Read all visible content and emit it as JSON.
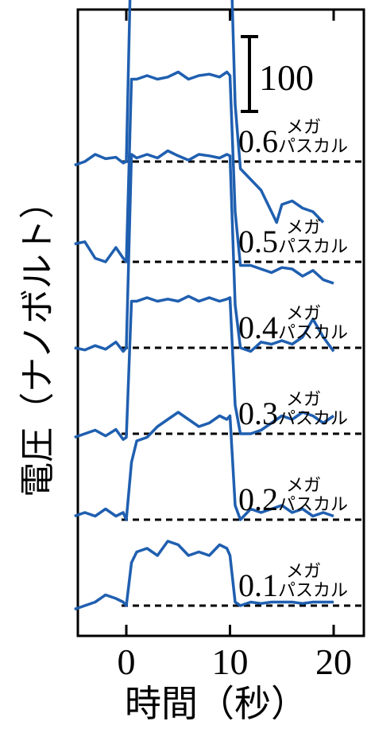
{
  "chart_data": {
    "type": "line",
    "xlabel": "時間（秒）",
    "ylabel": "電圧（ナノボルト）",
    "x_ticks": [
      "0",
      "10",
      "20"
    ],
    "xlim": [
      -5,
      21
    ],
    "scale_bar_label": "100",
    "series_color": "#1f5fb0",
    "series": [
      {
        "label_value": "0.6",
        "label_top": "メガ",
        "label_bottom": "パスカル",
        "offset": 500,
        "x": [
          -5,
          -4,
          -3,
          -2,
          -1,
          -0.3,
          0,
          0.5,
          1,
          2,
          3,
          4,
          5,
          6,
          7,
          8,
          9,
          9.7,
          10,
          10.5,
          11,
          12,
          13,
          14,
          14.5,
          15,
          16,
          17,
          18,
          19
        ],
        "y": [
          -5,
          0,
          10,
          4,
          6,
          -2,
          0,
          320,
          320,
          335,
          325,
          330,
          335,
          325,
          330,
          338,
          330,
          335,
          330,
          80,
          -10,
          -25,
          -40,
          -70,
          -85,
          -60,
          -55,
          -65,
          -70,
          -85
        ]
      },
      {
        "label_value": "0.5",
        "label_top": "メガ",
        "label_bottom": "パスカル",
        "offset": 360,
        "x": [
          -5,
          -4,
          -3,
          -2,
          -1,
          -0.3,
          0,
          0.5,
          1,
          2,
          3,
          4,
          5,
          6,
          7,
          8,
          9,
          9.7,
          10,
          10.5,
          11,
          12,
          13,
          14,
          15,
          16,
          17,
          18,
          19,
          20
        ],
        "y": [
          25,
          28,
          5,
          0,
          20,
          5,
          0,
          255,
          255,
          260,
          255,
          258,
          265,
          255,
          260,
          262,
          258,
          265,
          260,
          70,
          -5,
          -5,
          -10,
          -15,
          -8,
          -10,
          -20,
          -12,
          -25,
          -30
        ]
      },
      {
        "label_value": "0.4",
        "label_top": "メガ",
        "label_bottom": "パスカル",
        "offset": 240,
        "x": [
          -5,
          -4,
          -3,
          -2,
          -1,
          -0.3,
          0,
          0.5,
          1,
          2,
          3,
          4,
          5,
          6,
          7,
          8,
          9,
          9.7,
          10,
          10.5,
          11,
          12,
          13,
          14,
          15,
          16,
          17,
          18,
          19,
          20
        ],
        "y": [
          0,
          -3,
          3,
          -2,
          8,
          -5,
          0,
          270,
          265,
          270,
          265,
          275,
          268,
          262,
          270,
          268,
          265,
          270,
          268,
          60,
          0,
          -5,
          8,
          5,
          10,
          5,
          15,
          40,
          15,
          -5
        ]
      },
      {
        "label_value": "0.3",
        "label_top": "メガ",
        "label_bottom": "パスカル",
        "offset": 120,
        "x": [
          -5,
          -4,
          -3,
          -2,
          -1,
          -0.3,
          0,
          0.5,
          1,
          2,
          3,
          4,
          5,
          6,
          7,
          8,
          9,
          9.7,
          10,
          10.5,
          11,
          12,
          13,
          14,
          15,
          16,
          17,
          18,
          19,
          20
        ],
        "y": [
          -5,
          0,
          5,
          -3,
          6,
          -8,
          -5,
          185,
          185,
          190,
          185,
          188,
          185,
          192,
          185,
          190,
          185,
          188,
          190,
          40,
          0,
          0,
          5,
          15,
          25,
          20,
          30,
          25,
          15,
          25
        ]
      },
      {
        "label_value": "0.2",
        "label_top": "メガ",
        "label_bottom": "パスカル",
        "offset": 0,
        "x": [
          -5,
          -4,
          -3,
          -2,
          -1,
          -0.3,
          0,
          0.5,
          1,
          2,
          3,
          4,
          5,
          6,
          7,
          8,
          9,
          9.7,
          10,
          10.5,
          11,
          12,
          13,
          14,
          15,
          16,
          17,
          18,
          19,
          20
        ],
        "y": [
          5,
          10,
          5,
          15,
          5,
          10,
          0,
          80,
          110,
          115,
          130,
          140,
          150,
          140,
          130,
          135,
          145,
          140,
          145,
          20,
          0,
          15,
          10,
          15,
          20,
          10,
          15,
          5,
          10,
          5
        ]
      },
      {
        "label_value": "0.1",
        "label_top": "メガ",
        "label_bottom": "パスカル",
        "offset": -120,
        "x": [
          -5,
          -4,
          -3,
          -2,
          -1,
          -0.3,
          0,
          0.5,
          1,
          2,
          3,
          4,
          5,
          6,
          7,
          8,
          9,
          9.7,
          10,
          10.5,
          11,
          12,
          13,
          14,
          15,
          16,
          17,
          18,
          19,
          20
        ],
        "y": [
          -5,
          0,
          5,
          15,
          10,
          5,
          0,
          60,
          75,
          80,
          70,
          90,
          85,
          70,
          75,
          70,
          85,
          80,
          70,
          5,
          0,
          5,
          3,
          5,
          5,
          5,
          3,
          5,
          5,
          5
        ]
      }
    ]
  }
}
